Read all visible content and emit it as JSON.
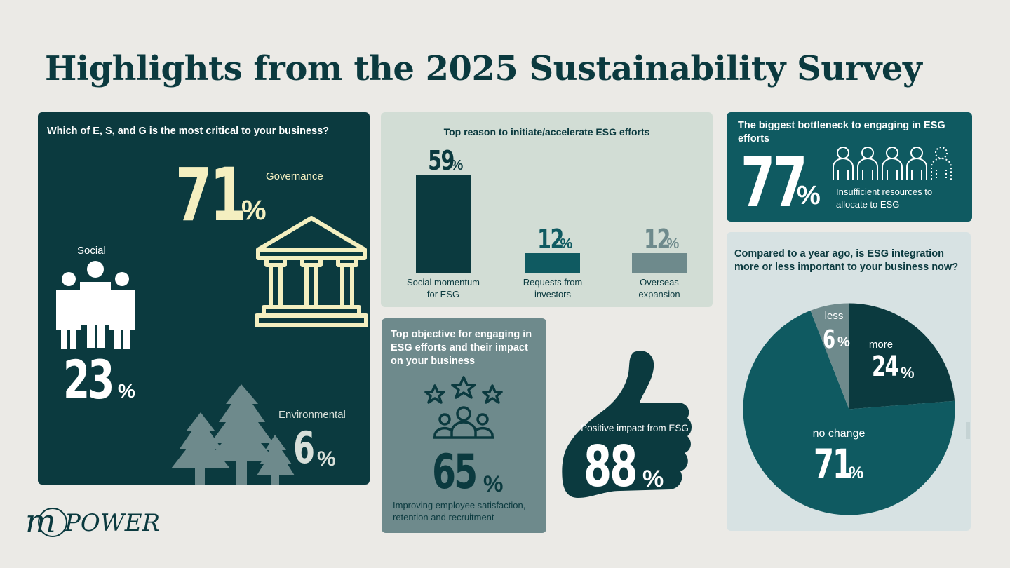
{
  "title": "Highlights from the 2025 Sustainability Survey",
  "esg_card": {
    "question": "Which of E, S, and G is the most critical to your business?",
    "governance": {
      "label": "Governance",
      "value": "71",
      "unit": "%"
    },
    "social": {
      "label": "Social",
      "value": "23",
      "unit": "%"
    },
    "environmental": {
      "label": "Environmental",
      "value": "6",
      "unit": "%"
    }
  },
  "reasons_card": {
    "question": "Top reason to initiate/accelerate ESG efforts",
    "chart_data": {
      "type": "bar",
      "categories": [
        "Social momentum for ESG",
        "Requests from investors",
        "Overseas expansion"
      ],
      "values": [
        59,
        12,
        12
      ],
      "unit": "%",
      "colors": [
        "#0b3a3f",
        "#0f5a61",
        "#6e8a8c"
      ]
    },
    "bars": [
      {
        "value": "59",
        "unit": "%",
        "label_line1": "Social momentum",
        "label_line2": "for ESG"
      },
      {
        "value": "12",
        "unit": "%",
        "label_line1": "Requests from",
        "label_line2": "investors"
      },
      {
        "value": "12",
        "unit": "%",
        "label_line1": "Overseas",
        "label_line2": "expansion"
      }
    ]
  },
  "objective_card": {
    "question": "Top objective for engaging in ESG efforts and their impact on your business",
    "value": "65",
    "unit": "%",
    "caption": "Improving employee satisfaction, retention and recruitment"
  },
  "thumb": {
    "label": "Positive impact from ESG",
    "value": "88",
    "unit": "%"
  },
  "bottleneck_card": {
    "question": "The biggest bottleneck to engaging in ESG efforts",
    "value": "77",
    "unit": "%",
    "caption": "Insufficient resources to allocate to ESG"
  },
  "importance_card": {
    "question": "Compared to a year ago, is ESG integration more or less important to your business now?",
    "chart_data": {
      "type": "pie",
      "categories": [
        "more",
        "no change",
        "less"
      ],
      "values": [
        24,
        71,
        6
      ],
      "unit": "%",
      "colors": [
        "#0b3a3f",
        "#0f5a61",
        "#6e8a8c"
      ]
    },
    "slices": [
      {
        "label": "more",
        "value": "24",
        "unit": "%"
      },
      {
        "label": "no change",
        "value": "71",
        "unit": "%"
      },
      {
        "label": "less",
        "value": "6",
        "unit": "%"
      }
    ]
  },
  "logo": {
    "mark": "m",
    "text": "POWER"
  },
  "colors": {
    "dark": "#0b3a3f",
    "teal": "#0f5a61",
    "gray_teal": "#6e8a8c",
    "cream": "#f4efc0",
    "bg": "#ebeae6"
  }
}
